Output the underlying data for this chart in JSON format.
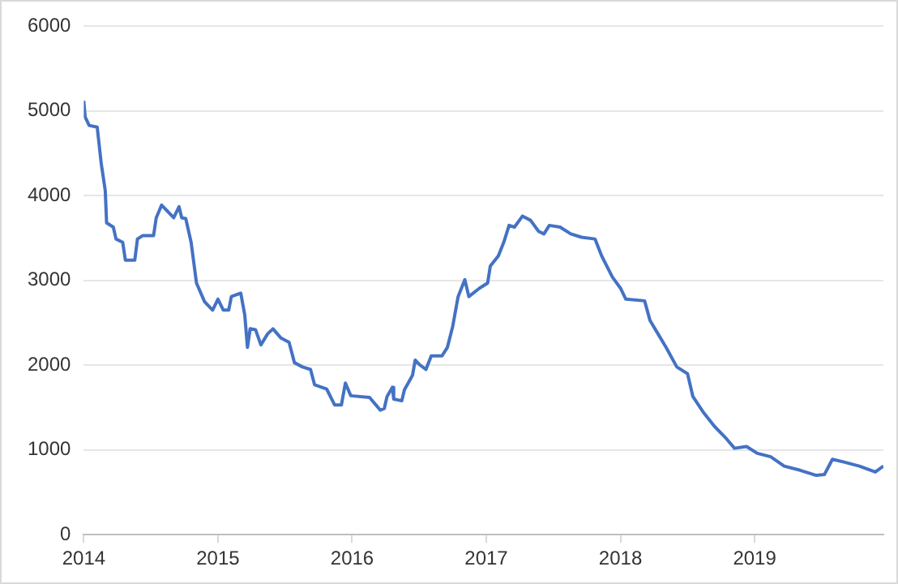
{
  "chart_data": {
    "type": "line",
    "x": [
      2014.0,
      2014.01,
      2014.04,
      2014.1,
      2014.13,
      2014.16,
      2014.17,
      2014.22,
      2014.24,
      2014.29,
      2014.31,
      2014.38,
      2014.4,
      2014.44,
      2014.52,
      2014.54,
      2014.58,
      2014.67,
      2014.71,
      2014.73,
      2014.76,
      2014.8,
      2014.84,
      2014.9,
      2014.96,
      2015.0,
      2015.04,
      2015.08,
      2015.1,
      2015.17,
      2015.2,
      2015.22,
      2015.24,
      2015.28,
      2015.32,
      2015.37,
      2015.41,
      2015.47,
      2015.53,
      2015.57,
      2015.63,
      2015.69,
      2015.72,
      2015.81,
      2015.87,
      2015.92,
      2015.95,
      2015.99,
      2016.13,
      2016.21,
      2016.24,
      2016.26,
      2016.3,
      2016.31,
      2016.37,
      2016.39,
      2016.45,
      2016.47,
      2016.5,
      2016.55,
      2016.59,
      2016.67,
      2016.71,
      2016.75,
      2016.79,
      2016.84,
      2016.87,
      2016.95,
      2017.01,
      2017.03,
      2017.09,
      2017.13,
      2017.17,
      2017.21,
      2017.27,
      2017.33,
      2017.39,
      2017.43,
      2017.47,
      2017.55,
      2017.63,
      2017.71,
      2017.81,
      2017.86,
      2017.94,
      2018.0,
      2018.04,
      2018.18,
      2018.22,
      2018.28,
      2018.34,
      2018.42,
      2018.5,
      2018.54,
      2018.62,
      2018.7,
      2018.78,
      2018.85,
      2018.94,
      2019.02,
      2019.12,
      2019.22,
      2019.34,
      2019.46,
      2019.52,
      2019.58,
      2019.66,
      2019.78,
      2019.9,
      2019.96
    ],
    "series": [
      {
        "color": "#4472c4",
        "values": [
          5120,
          4930,
          4830,
          4810,
          4380,
          4060,
          3680,
          3630,
          3490,
          3450,
          3240,
          3240,
          3490,
          3530,
          3530,
          3740,
          3890,
          3740,
          3870,
          3740,
          3730,
          3450,
          2970,
          2750,
          2650,
          2780,
          2650,
          2650,
          2810,
          2850,
          2590,
          2210,
          2430,
          2420,
          2240,
          2370,
          2430,
          2320,
          2270,
          2030,
          1980,
          1950,
          1770,
          1720,
          1530,
          1530,
          1790,
          1640,
          1620,
          1470,
          1490,
          1630,
          1740,
          1600,
          1580,
          1710,
          1880,
          2060,
          2010,
          1950,
          2110,
          2110,
          2210,
          2460,
          2810,
          3010,
          2810,
          2910,
          2970,
          3170,
          3290,
          3450,
          3650,
          3630,
          3760,
          3710,
          3580,
          3550,
          3650,
          3630,
          3550,
          3510,
          3490,
          3290,
          3040,
          2910,
          2780,
          2760,
          2530,
          2370,
          2210,
          1980,
          1900,
          1630,
          1440,
          1280,
          1150,
          1020,
          1040,
          960,
          920,
          810,
          760,
          700,
          710,
          890,
          860,
          810,
          740,
          810
        ]
      }
    ],
    "xlim": [
      2014,
      2019.96
    ],
    "xticks": [
      2014,
      2015,
      2016,
      2017,
      2018,
      2019
    ],
    "ylim": [
      0,
      6000
    ],
    "yticks": [
      0,
      1000,
      2000,
      3000,
      4000,
      5000,
      6000
    ],
    "grid": "y",
    "marker": "none",
    "line_style": "solid",
    "legend": false
  }
}
